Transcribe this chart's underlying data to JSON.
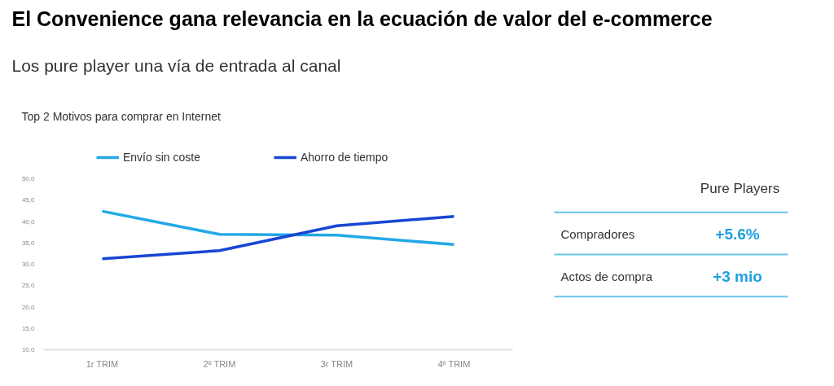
{
  "chart_data": [
    {
      "type": "line",
      "title": "El Convenience gana relevancia en la ecuación de valor del e-commerce",
      "subtitle": "Los pure player una vía de entrada al canal",
      "annotations": [
        "Top 2 Motivos para comprar en Internet"
      ],
      "categories": [
        "1r TRIM",
        "2º TRIM",
        "3r TRIM",
        "4º TRIM"
      ],
      "series": [
        {
          "name": "Envío sin coste",
          "color": "#22a9e6",
          "values": [
            42.4,
            37.0,
            36.8,
            34.6
          ]
        },
        {
          "name": "Ahorro de tiempo",
          "color": "#1746d4",
          "values": [
            31.3,
            33.2,
            39.0,
            41.2
          ]
        }
      ],
      "ylim": [
        10,
        50
      ],
      "yticks": [
        {
          "value": 10,
          "label": "10,0"
        },
        {
          "value": 15,
          "label": "15,0"
        },
        {
          "value": 20,
          "label": "20,0"
        },
        {
          "value": 25,
          "label": "25,0"
        },
        {
          "value": 30,
          "label": "30,0"
        },
        {
          "value": 35,
          "label": "35,0"
        },
        {
          "value": 40,
          "label": "40,0"
        },
        {
          "value": 45,
          "label": "45,0"
        },
        {
          "value": 50,
          "label": "50,0"
        }
      ],
      "legend": "top"
    },
    {
      "type": "other",
      "title": "Pure Players",
      "annotations": [
        "Compradores",
        "+5.6%",
        "Actos de compra",
        "+3 mio"
      ]
    }
  ]
}
